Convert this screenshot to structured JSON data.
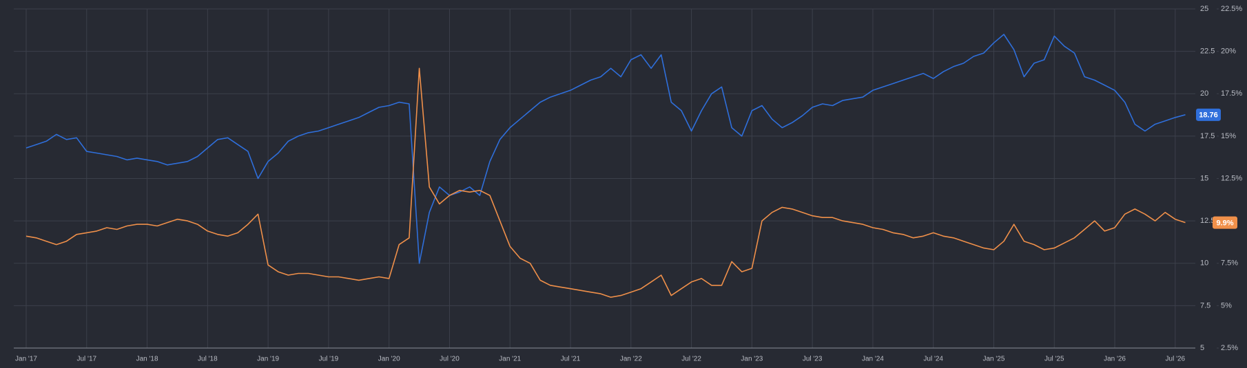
{
  "chart_data": {
    "type": "line",
    "categories": [
      "Jan '17",
      null,
      null,
      null,
      null,
      null,
      "Jul '17",
      null,
      null,
      null,
      null,
      null,
      "Jan '18",
      null,
      null,
      null,
      null,
      null,
      "Jul '18",
      null,
      null,
      null,
      null,
      null,
      "Jan '19",
      null,
      null,
      null,
      null,
      null,
      "Jul '19",
      null,
      null,
      null,
      null,
      null,
      "Jan '20",
      null,
      null,
      null,
      null,
      null,
      "Jul '20",
      null,
      null,
      null,
      null,
      null,
      "Jan '21",
      null,
      null,
      null,
      null,
      null,
      "Jul '21",
      null,
      null,
      null,
      null,
      null,
      "Jan '22",
      null,
      null,
      null,
      null,
      null,
      "Jul '22",
      null,
      null,
      null,
      null,
      null,
      "Jan '23",
      null,
      null,
      null,
      null,
      null,
      "Jul '23",
      null,
      null,
      null,
      null,
      null,
      "Jan '24",
      null,
      null,
      null,
      null,
      null,
      "Jul '24",
      null,
      null,
      null,
      null,
      null,
      "Jan '25",
      null,
      null,
      null,
      null,
      null,
      "Jul '25",
      null,
      null,
      null,
      null,
      null,
      "Jan '26",
      null,
      null,
      null,
      null,
      null,
      "Jul '26",
      null
    ],
    "series": [
      {
        "color": "#2f6fdb",
        "end_label": "18.76",
        "values": [
          16.8,
          17.0,
          17.2,
          17.6,
          17.3,
          17.4,
          16.6,
          16.5,
          16.4,
          16.3,
          16.1,
          16.2,
          16.1,
          16.0,
          15.8,
          15.9,
          16.0,
          16.3,
          16.8,
          17.3,
          17.4,
          17.0,
          16.6,
          15.0,
          16.0,
          16.5,
          17.2,
          17.5,
          17.7,
          17.8,
          18.0,
          18.2,
          18.4,
          18.6,
          18.9,
          19.2,
          19.3,
          19.5,
          19.4,
          10.0,
          13.0,
          14.5,
          14.0,
          14.2,
          14.5,
          14.0,
          16.0,
          17.3,
          18.0,
          18.5,
          19.0,
          19.5,
          19.8,
          20.0,
          20.2,
          20.5,
          20.8,
          21.0,
          21.5,
          21.0,
          22.0,
          22.3,
          21.5,
          22.3,
          19.5,
          19.0,
          17.8,
          19.0,
          20.0,
          20.4,
          18.0,
          17.5,
          19.0,
          19.3,
          18.5,
          18.0,
          18.3,
          18.7,
          19.2,
          19.4,
          19.3,
          19.6,
          19.7,
          19.8,
          20.2,
          20.4,
          20.6,
          20.8,
          21.0,
          21.2,
          20.9,
          21.3,
          21.6,
          21.8,
          22.2,
          22.4,
          23.0,
          23.5,
          22.6,
          21.0,
          21.8,
          22.0,
          23.4,
          22.8,
          22.4,
          21.0,
          20.8,
          20.5,
          20.2,
          19.5,
          18.2,
          17.8,
          18.2,
          18.4,
          18.6,
          18.76
        ]
      },
      {
        "color": "#f0904a",
        "axis": "y2",
        "end_label": "9.9%",
        "values": [
          9.1,
          9.0,
          8.8,
          8.6,
          8.8,
          9.2,
          9.3,
          9.4,
          9.6,
          9.5,
          9.7,
          9.8,
          9.8,
          9.7,
          9.9,
          10.1,
          10.0,
          9.8,
          9.4,
          9.2,
          9.1,
          9.3,
          9.8,
          10.4,
          7.4,
          7.0,
          6.8,
          6.9,
          6.9,
          6.8,
          6.7,
          6.7,
          6.6,
          6.5,
          6.6,
          6.7,
          6.6,
          8.6,
          9.0,
          19.0,
          12.0,
          11.0,
          11.5,
          11.8,
          11.7,
          11.8,
          11.5,
          10.0,
          8.5,
          7.8,
          7.5,
          6.5,
          6.2,
          6.1,
          6.0,
          5.9,
          5.8,
          5.7,
          5.5,
          5.6,
          5.8,
          6.0,
          6.4,
          6.8,
          5.6,
          6.0,
          6.4,
          6.6,
          6.2,
          6.2,
          7.6,
          7.0,
          7.2,
          10.0,
          10.5,
          10.8,
          10.7,
          10.5,
          10.3,
          10.2,
          10.2,
          10.0,
          9.9,
          9.8,
          9.6,
          9.5,
          9.3,
          9.2,
          9.0,
          9.1,
          9.3,
          9.1,
          9.0,
          8.8,
          8.6,
          8.4,
          8.3,
          8.8,
          9.8,
          8.8,
          8.6,
          8.3,
          8.4,
          8.7,
          9.0,
          9.5,
          10.0,
          9.4,
          9.6,
          10.4,
          10.7,
          10.4,
          10.0,
          10.5,
          10.1,
          9.9
        ]
      }
    ],
    "ylim": [
      5,
      25
    ],
    "yticks": [
      5,
      7.5,
      10,
      12.5,
      15,
      17.5,
      20,
      22.5,
      25
    ],
    "y2lim": [
      2.5,
      22.5
    ],
    "y2ticks": [
      {
        "value": 2.5,
        "label": "2.5%"
      },
      {
        "value": 5,
        "label": "5%"
      },
      {
        "value": 7.5,
        "label": "7.5%"
      },
      {
        "value": 10,
        "label": "10%"
      },
      {
        "value": 12.5,
        "label": "12.5%"
      },
      {
        "value": 15,
        "label": "15%"
      },
      {
        "value": 17.5,
        "label": "17.5%"
      },
      {
        "value": 20,
        "label": "20%"
      },
      {
        "value": 22.5,
        "label": "22.5%"
      }
    ],
    "grid": true
  }
}
